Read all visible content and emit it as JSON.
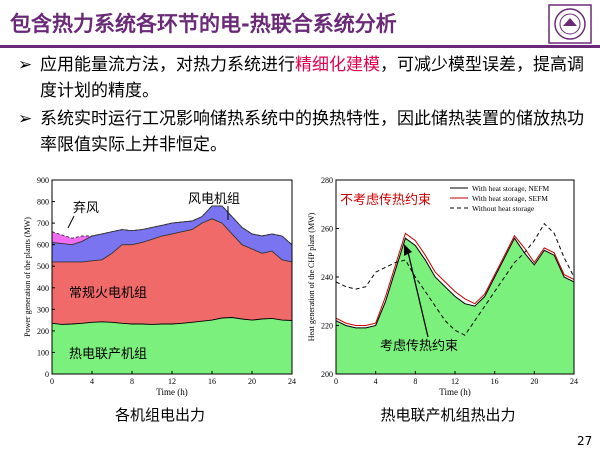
{
  "slide": {
    "title": "包含热力系统各环节的电-热联合系统分析",
    "page_number": "27",
    "bullets": [
      {
        "arrow": "➢",
        "pre": "应用能量流方法，对热力系统进行",
        "highlight": "精细化建模",
        "post": "，可减少模型误差，提高调度计划的精度。"
      },
      {
        "arrow": "➢",
        "pre": "系统实时运行工况影响储热系统中的换热特性，因此储热装置的储放热功率限值实际上并非恒定。",
        "highlight": "",
        "post": ""
      }
    ],
    "captions": {
      "left": "各机组电出力",
      "right": "热电联产机组热出力"
    },
    "colors": {
      "accent": "#6b2a78",
      "highlight": "#e3004f"
    }
  },
  "chart_data": [
    {
      "type": "area",
      "xlabel": "Time (h)",
      "ylabel": "Power generation of the plants (MW)",
      "xlim": [
        0,
        24
      ],
      "ylim": [
        0,
        900
      ],
      "xticks": [
        "0",
        "4",
        "8",
        "12",
        "16",
        "20",
        "24"
      ],
      "yticks": [
        "0",
        "100",
        "200",
        "300",
        "400",
        "500",
        "600",
        "700",
        "800",
        "900"
      ],
      "annotations": [
        "弃风",
        "风电机组",
        "常规火电机组",
        "热电联产机组"
      ],
      "x": [
        0,
        1,
        2,
        3,
        4,
        5,
        6,
        7,
        8,
        9,
        10,
        11,
        12,
        13,
        14,
        15,
        16,
        17,
        18,
        19,
        20,
        21,
        22,
        23,
        24
      ],
      "series": [
        {
          "key": "chp",
          "color": "#7cf07c",
          "values": [
            235,
            230,
            232,
            235,
            240,
            242,
            240,
            235,
            232,
            232,
            230,
            232,
            232,
            235,
            240,
            245,
            250,
            260,
            262,
            255,
            250,
            255,
            258,
            250,
            248
          ]
        },
        {
          "key": "thermal",
          "color": "#f06a6a",
          "values": [
            520,
            520,
            520,
            520,
            525,
            530,
            560,
            600,
            600,
            610,
            625,
            640,
            650,
            660,
            670,
            700,
            720,
            700,
            650,
            600,
            580,
            560,
            570,
            530,
            520
          ]
        },
        {
          "key": "wind",
          "color": "#7a74f0",
          "values": [
            610,
            605,
            600,
            615,
            640,
            650,
            660,
            670,
            665,
            670,
            680,
            690,
            700,
            705,
            710,
            730,
            780,
            780,
            730,
            680,
            650,
            640,
            650,
            640,
            600
          ]
        },
        {
          "key": "curtail",
          "color": "#f06cf0",
          "values": [
            660,
            645,
            630,
            640,
            640,
            650,
            660,
            670,
            665,
            670,
            680,
            690,
            700,
            705,
            710,
            730,
            780,
            780,
            730,
            680,
            650,
            640,
            650,
            640,
            600
          ]
        }
      ]
    },
    {
      "type": "line",
      "xlabel": "Time (h)",
      "ylabel": "Heat generation of the CHP plant (MW)",
      "xlim": [
        0,
        24
      ],
      "ylim": [
        200,
        280
      ],
      "xticks": [
        "0",
        "4",
        "8",
        "12",
        "16",
        "20",
        "24"
      ],
      "yticks": [
        "200",
        "220",
        "240",
        "260",
        "280"
      ],
      "annotations": [
        "不考虑传热约束",
        "考虑传热约束"
      ],
      "x": [
        0,
        1,
        2,
        3,
        4,
        5,
        6,
        7,
        8,
        9,
        10,
        11,
        12,
        13,
        14,
        15,
        16,
        17,
        18,
        19,
        20,
        21,
        22,
        23,
        24
      ],
      "series": [
        {
          "name": "With heat storage, NEFM",
          "color": "#000000",
          "dash": false,
          "fill": "#7cf07c",
          "values": [
            222,
            220,
            219,
            219,
            220,
            230,
            243,
            256,
            253,
            247,
            240,
            236,
            232,
            229,
            228,
            232,
            240,
            248,
            256,
            250,
            245,
            251,
            249,
            240,
            238
          ]
        },
        {
          "name": "With heat storage, SEFM",
          "color": "#cc0000",
          "dash": false,
          "fill": null,
          "values": [
            223,
            221,
            220,
            220,
            221,
            232,
            245,
            258,
            255,
            249,
            242,
            238,
            234,
            231,
            229,
            233,
            241,
            249,
            257,
            252,
            246,
            252,
            250,
            241,
            239
          ]
        },
        {
          "name": "Without heat storage",
          "color": "#000000",
          "dash": true,
          "fill": null,
          "values": [
            238,
            236,
            235,
            236,
            242,
            244,
            246,
            247,
            240,
            234,
            228,
            222,
            218,
            216,
            222,
            228,
            234,
            240,
            246,
            250,
            255,
            262,
            258,
            248,
            240
          ]
        }
      ]
    }
  ]
}
